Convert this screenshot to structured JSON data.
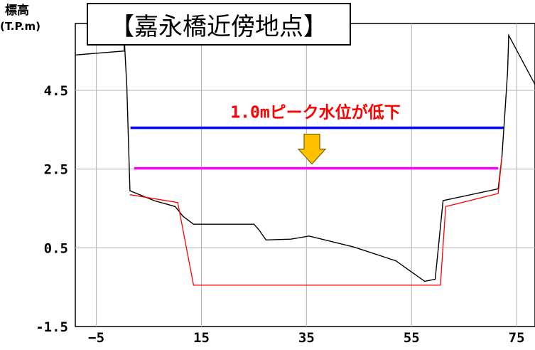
{
  "chart_data": {
    "type": "line",
    "title": "【嘉永橋近傍地点】",
    "ylabel_line1": "標高",
    "ylabel_line2": "(T.P.m)",
    "xlabel": "",
    "xlim": [
      -9,
      78.5
    ],
    "ylim": [
      -1.5,
      6.2
    ],
    "x_ticks": [
      -5,
      15,
      35,
      55,
      75
    ],
    "x_tick_labels": [
      "−5",
      "15",
      "35",
      "55",
      "75"
    ],
    "y_ticks": [
      -1.5,
      0.5,
      2.5,
      4.5
    ],
    "y_tick_labels": [
      "-1.5",
      "0.5",
      "2.5",
      "4.5"
    ],
    "grid": true,
    "annotation": "1.0mピーク水位が低下",
    "series": [
      {
        "color": "#000000",
        "x": [
          -9,
          0.3,
          0.3,
          0.8,
          1.4,
          6,
          10,
          11.5,
          13.5,
          25,
          26,
          27.3,
          32,
          35.5,
          44,
          52,
          57.5,
          59.5,
          61,
          71.5,
          72.2,
          72.8,
          73.3,
          73.5,
          78.5
        ],
        "y": [
          5.4,
          5.5,
          5.85,
          4.6,
          1.95,
          1.7,
          1.55,
          1.3,
          1.1,
          1.1,
          0.95,
          0.7,
          0.72,
          0.8,
          0.52,
          0.17,
          -0.35,
          -0.3,
          1.7,
          2.0,
          2.8,
          4.0,
          5.0,
          5.9,
          4.65
        ]
      },
      {
        "color": "#ff0000",
        "x": [
          1.4,
          10.5,
          13.5,
          60.5,
          61.5,
          71.5,
          72.2
        ],
        "y": [
          1.85,
          1.65,
          -0.45,
          -0.45,
          1.55,
          1.88,
          2.8
        ]
      },
      {
        "color": "#0000ff",
        "x": [
          1.5,
          72.5
        ],
        "y": [
          3.55,
          3.55
        ]
      },
      {
        "color": "#ff00ff",
        "x": [
          2.2,
          71.5
        ],
        "y": [
          2.52,
          2.52
        ]
      }
    ],
    "arrow_color": "#ffc000"
  }
}
